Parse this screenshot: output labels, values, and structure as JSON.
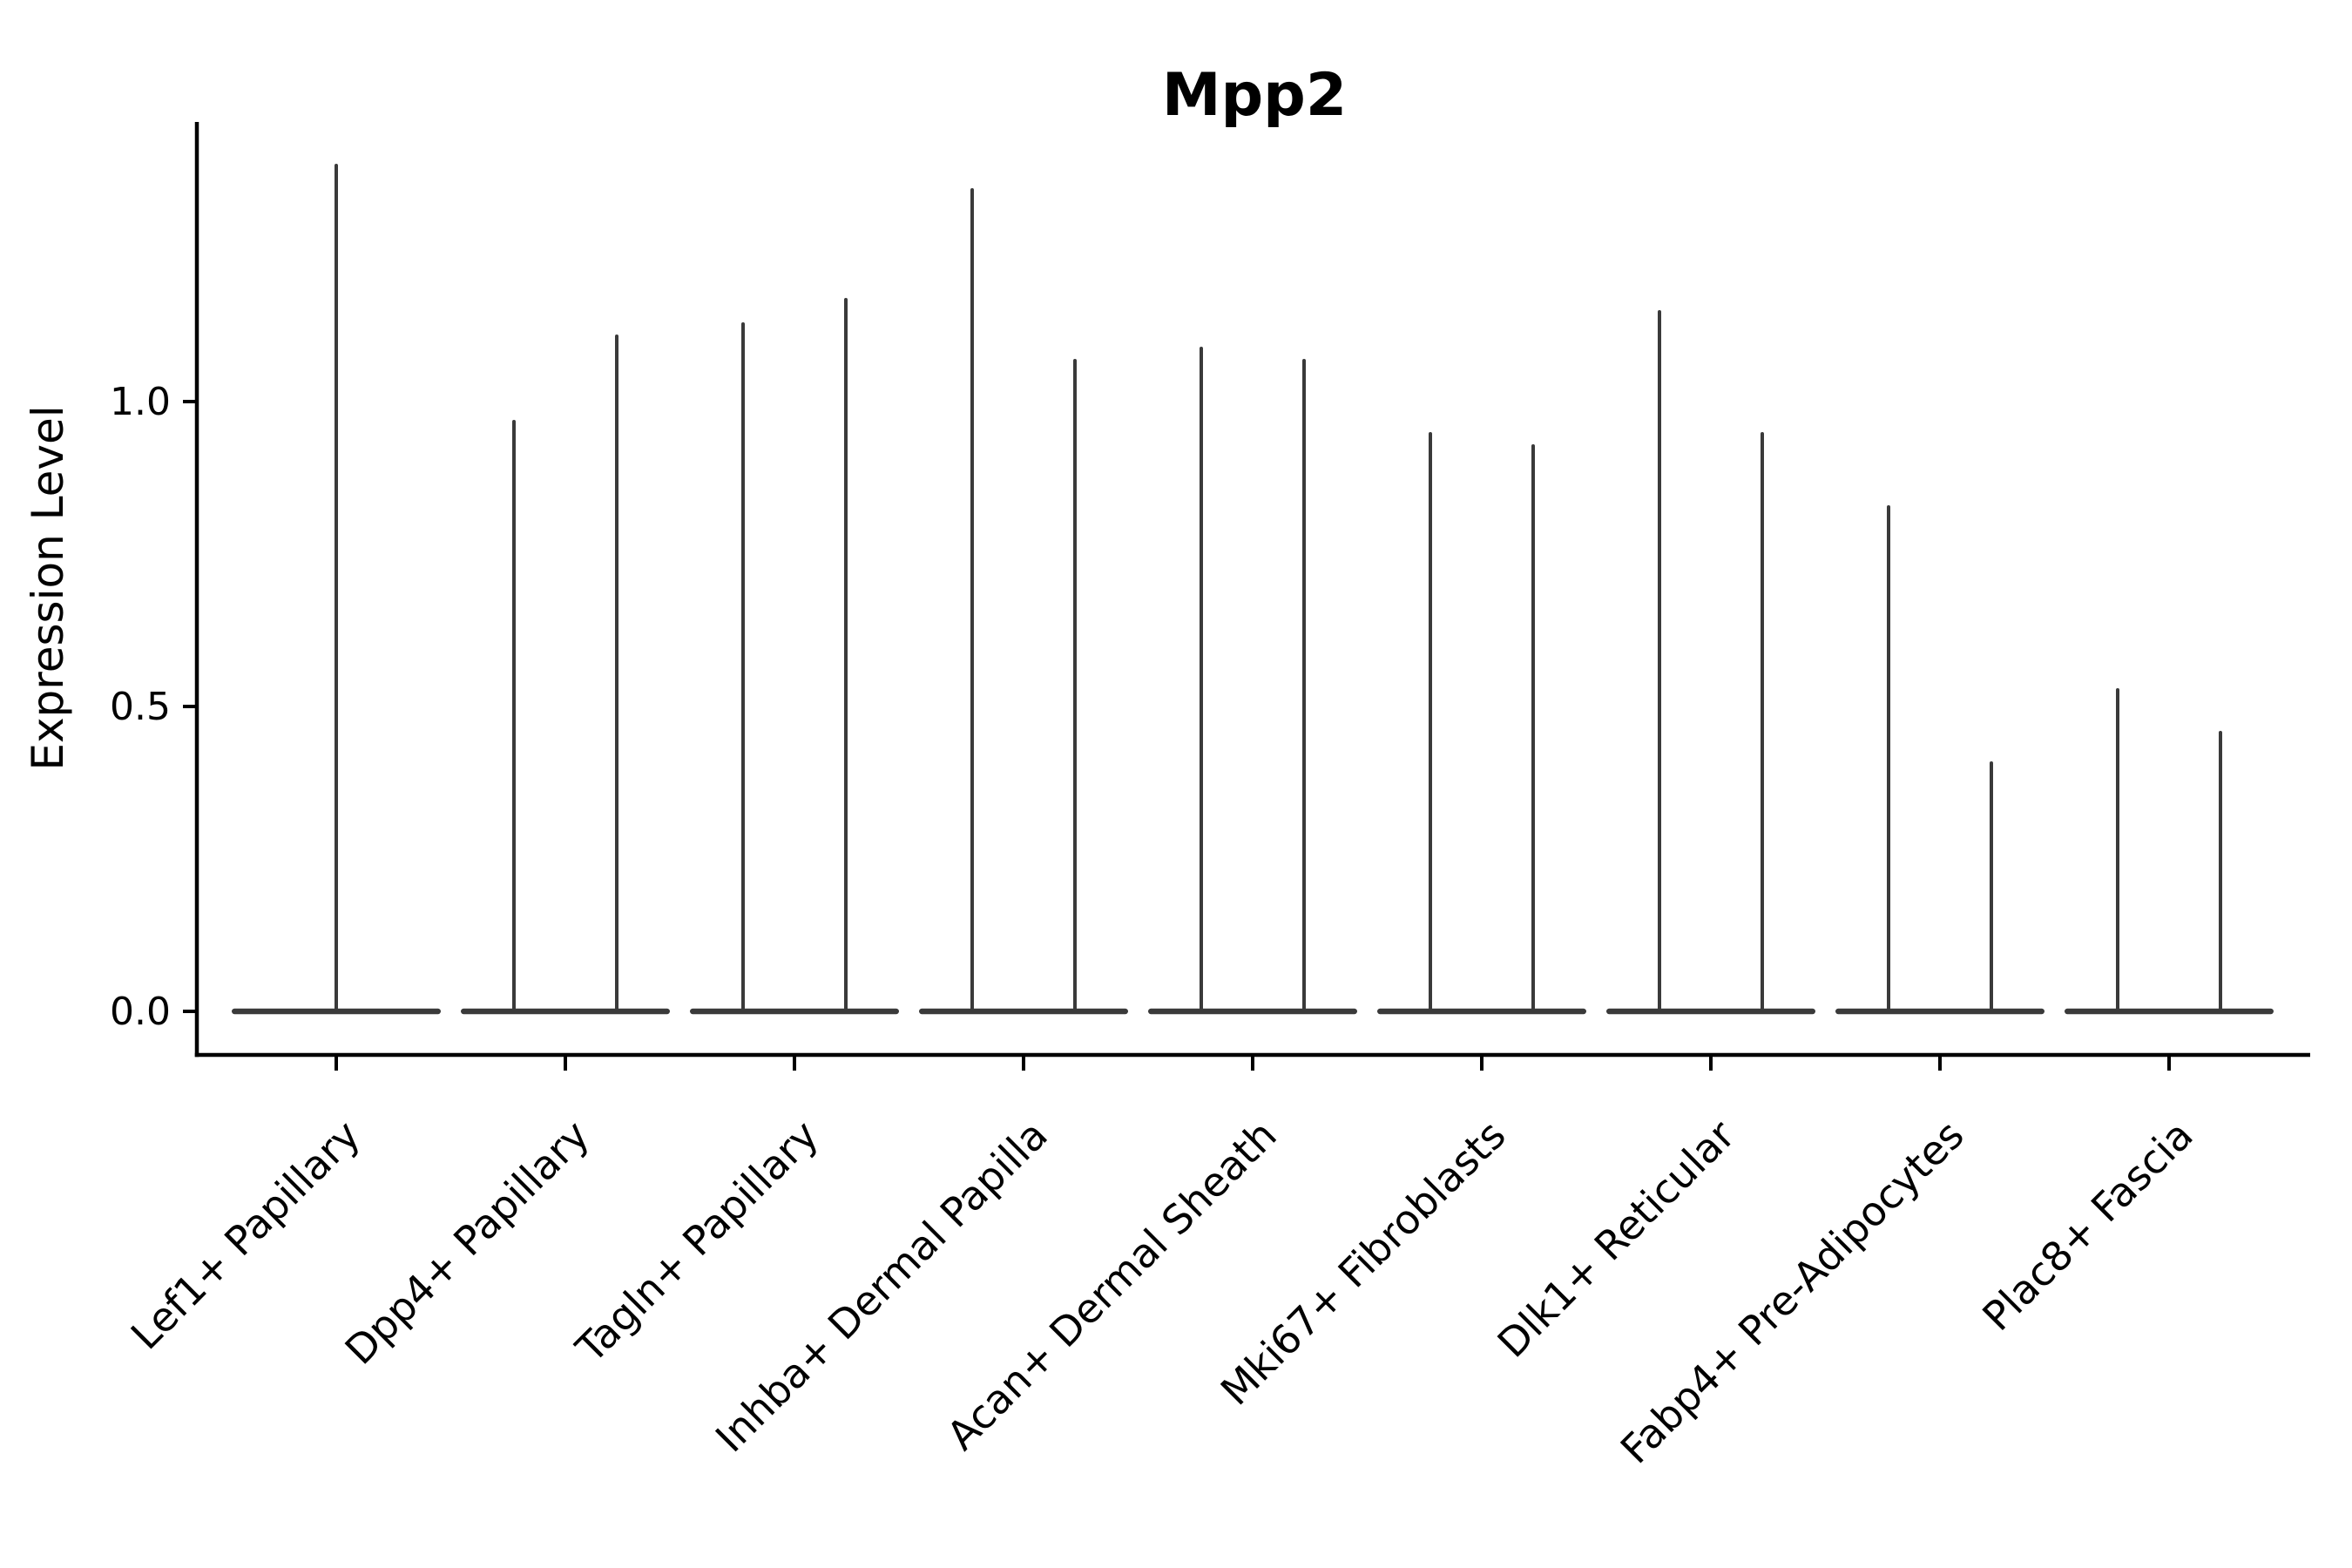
{
  "chart_data": {
    "type": "violin",
    "title": "Mpp2",
    "ylabel": "Expression Level",
    "xlabel": "",
    "legend": null,
    "grid": false,
    "ytick_labels": [
      "0.0",
      "0.5",
      "1.0"
    ],
    "ytick_values": [
      0.0,
      0.5,
      1.0
    ],
    "ylim": [
      -0.07,
      1.46
    ],
    "categories": [
      "Lef1+ Papillary",
      "Dpp4+ Papillary",
      "Tagln+ Papillary",
      "Inhba+ Dermal Papilla",
      "Acan+ Dermal Sheath",
      "Mki67+ Fibroblasts",
      "Dlk1+ Reticular",
      "Fabp4+ Pre-Adipocytes",
      "Plac8+ Fascia"
    ],
    "series": [
      {
        "category": "Lef1+ Papillary",
        "spike_maxima": [
          1.39
        ]
      },
      {
        "category": "Dpp4+ Papillary",
        "spike_maxima": [
          0.97,
          1.11
        ]
      },
      {
        "category": "Tagln+ Papillary",
        "spike_maxima": [
          1.13,
          1.17
        ]
      },
      {
        "category": "Inhba+ Dermal Papilla",
        "spike_maxima": [
          1.35,
          1.07
        ]
      },
      {
        "category": "Acan+ Dermal Sheath",
        "spike_maxima": [
          1.09,
          1.07
        ]
      },
      {
        "category": "Mki67+ Fibroblasts",
        "spike_maxima": [
          0.95,
          0.93
        ]
      },
      {
        "category": "Dlk1+ Reticular",
        "spike_maxima": [
          1.15,
          0.95
        ]
      },
      {
        "category": "Fabp4+ Pre-Adipocytes",
        "spike_maxima": [
          0.83,
          0.41
        ]
      },
      {
        "category": "Plac8+ Fascia",
        "spike_maxima": [
          0.53,
          0.46
        ]
      }
    ],
    "violin_baseline_value": 0.0,
    "colors": {
      "violin": "#3a3a3a",
      "axis": "#000000",
      "text": "#000000",
      "background": "#ffffff"
    }
  }
}
